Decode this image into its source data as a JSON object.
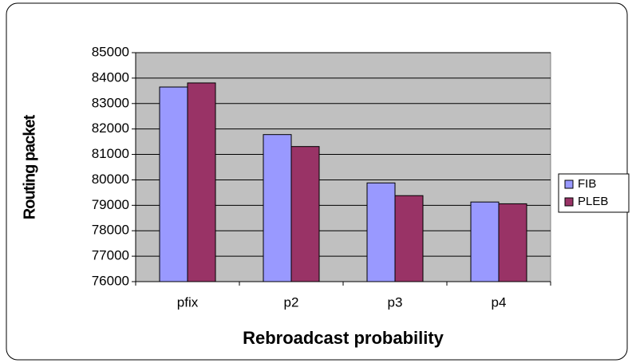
{
  "chart_data": {
    "type": "bar",
    "x_label": "Rebroadcast probability",
    "y_label": "Routing packet",
    "categories": [
      "pfix",
      "p2",
      "p3",
      "p4"
    ],
    "series": [
      {
        "name": "FIB",
        "color": "#9999ff",
        "values": [
          83650,
          81780,
          79880,
          79130
        ]
      },
      {
        "name": "PLEB",
        "color": "#993366",
        "values": [
          83810,
          81310,
          79380,
          79060
        ]
      }
    ],
    "ylim": [
      76000,
      85000
    ],
    "yticks": [
      76000,
      77000,
      78000,
      79000,
      80000,
      81000,
      82000,
      83000,
      84000,
      85000
    ],
    "grid": true,
    "legend": "right",
    "plot_background": "#c0c0c0"
  }
}
